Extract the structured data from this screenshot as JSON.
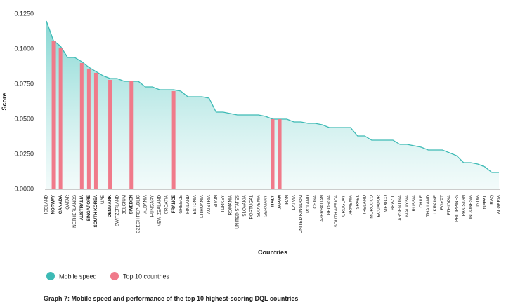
{
  "chart_data": {
    "type": "area_bar",
    "caption": "Graph 7: Mobile speed and performance of the top 10 highest-scoring DQL countries",
    "y_label": "Score",
    "x_label": "Countries",
    "categories": [
      "ICELAND",
      "NORWAY",
      "CANADA",
      "QATAR",
      "NETHERLANDS",
      "AUSTRALIA",
      "SINGAPORE",
      "SOUTH KOREA",
      "UAE",
      "DENMARK",
      "SWITZERLAND",
      "BELGIUM",
      "SWEDEN",
      "CZECH REPUBLIC",
      "ALBANIA",
      "HUNGARY",
      "NEW ZEALAND",
      "CROATIA",
      "FRANCE",
      "GREECE",
      "FINLAND",
      "ESTONIA",
      "LITHUANIA",
      "AUSTRIA",
      "SPAIN",
      "TURKEY",
      "ROMANIA",
      "UNITED STATES",
      "SLOVAKIA",
      "PORTUGAL",
      "SLOVENIA",
      "GERMANY",
      "ITALY",
      "JAPAN",
      "IRAN",
      "LATVIA",
      "UNITED KINGDOM",
      "POLAND",
      "CHINA",
      "AZERBAIJAN",
      "GEORGIA",
      "SOUTH AFRICA",
      "URUGUAY",
      "ARMENIA",
      "ISRAEL",
      "IRELAND",
      "MOROCCO",
      "ECUADOR",
      "MEXICO",
      "BRAZIL",
      "ARGENTINA",
      "MALAYSIA",
      "RUSSIA",
      "CHILE",
      "THAILAND",
      "UKRAINE",
      "EGYPT",
      "ETHIOPIA",
      "PHILIPPINES",
      "PAKISTAN",
      "INDONESIA",
      "INDIA",
      "NEPAL",
      "IRAQ",
      "ALGERIA"
    ],
    "series": [
      {
        "name": "Mobile speed",
        "color": "#3dbab5",
        "values": [
          0.12,
          0.106,
          0.102,
          0.094,
          0.094,
          0.091,
          0.087,
          0.084,
          0.081,
          0.079,
          0.079,
          0.077,
          0.077,
          0.077,
          0.073,
          0.073,
          0.071,
          0.071,
          0.071,
          0.07,
          0.066,
          0.066,
          0.066,
          0.065,
          0.055,
          0.055,
          0.054,
          0.053,
          0.053,
          0.053,
          0.053,
          0.052,
          0.05,
          0.05,
          0.05,
          0.048,
          0.048,
          0.047,
          0.047,
          0.046,
          0.044,
          0.044,
          0.044,
          0.044,
          0.038,
          0.038,
          0.035,
          0.035,
          0.035,
          0.035,
          0.032,
          0.032,
          0.031,
          0.03,
          0.028,
          0.028,
          0.028,
          0.026,
          0.024,
          0.019,
          0.019,
          0.018,
          0.016,
          0.012,
          0.012
        ]
      },
      {
        "name": "Top 10 countries",
        "color": "#f07a8a",
        "values": [
          null,
          0.106,
          0.101,
          null,
          null,
          0.09,
          0.086,
          0.083,
          null,
          0.078,
          null,
          null,
          0.077,
          null,
          null,
          null,
          null,
          null,
          0.07,
          null,
          null,
          null,
          null,
          null,
          null,
          null,
          null,
          null,
          null,
          null,
          null,
          null,
          0.05,
          0.05,
          null,
          null,
          null,
          null,
          null,
          null,
          null,
          null,
          null,
          null,
          null,
          null,
          null,
          null,
          null,
          null,
          null,
          null,
          null,
          null,
          null,
          null,
          null,
          null,
          null,
          null,
          null,
          null,
          null,
          null,
          null
        ]
      }
    ],
    "ylim": [
      0,
      0.125
    ],
    "yticks": [
      {
        "value": 0,
        "label": "0.0000"
      },
      {
        "value": 0.025,
        "label": "0.0250"
      },
      {
        "value": 0.05,
        "label": "0.0500"
      },
      {
        "value": 0.075,
        "label": "0.0750"
      },
      {
        "value": 0.1,
        "label": "0.1000"
      },
      {
        "value": 0.125,
        "label": "0.1250"
      }
    ]
  }
}
